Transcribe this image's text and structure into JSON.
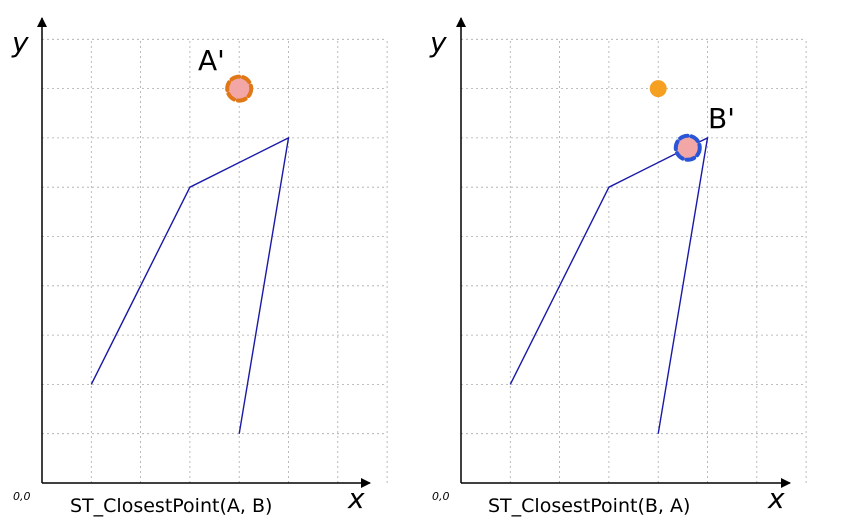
{
  "panels": [
    {
      "id": "left",
      "caption": "ST_ClosestPoint(A, B)",
      "x_axis_label": "x",
      "y_axis_label": "y",
      "origin_label": "0,0",
      "result_label": "A'",
      "result_ring_color": "#e07818",
      "result_fill_color": "#f2a6a6",
      "linestring": [
        [
          1,
          2
        ],
        [
          3,
          6
        ],
        [
          5,
          7
        ],
        [
          4,
          1
        ]
      ],
      "point_a": [
        4,
        8
      ],
      "closest_point": [
        4,
        8
      ]
    },
    {
      "id": "right",
      "caption": "ST_ClosestPoint(B, A)",
      "x_axis_label": "x",
      "y_axis_label": "y",
      "origin_label": "0,0",
      "result_label": "B'",
      "result_ring_color": "#2a55d6",
      "result_fill_color": "#f2a6a6",
      "linestring": [
        [
          1,
          2
        ],
        [
          3,
          6
        ],
        [
          5,
          7
        ],
        [
          4,
          1
        ]
      ],
      "point_a": [
        4,
        8
      ],
      "point_a_color": "#f5a020",
      "closest_point": [
        4.6,
        6.8
      ]
    }
  ],
  "colors": {
    "line": "#1a1aa8",
    "grid": "#aaaaaa",
    "axis": "#000000"
  }
}
